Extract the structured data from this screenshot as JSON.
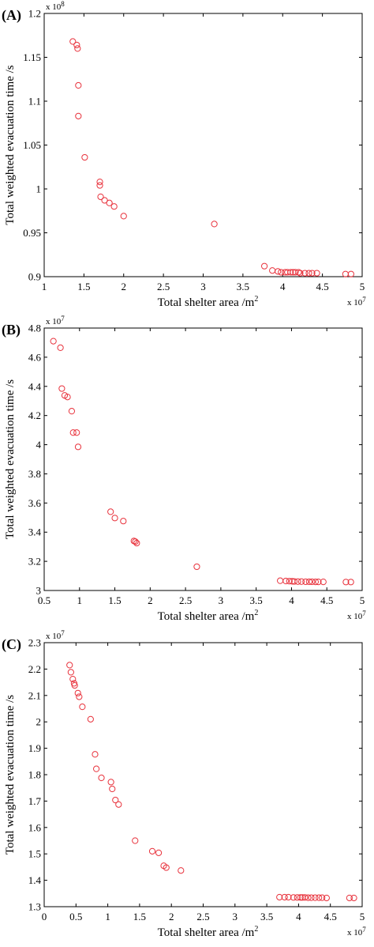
{
  "colors": {
    "marker": "#e8323c",
    "axis": "#000000",
    "background": "#ffffff"
  },
  "chart_data": [
    {
      "panel_label": "(A)",
      "type": "scatter",
      "xlabel": "Total shelter area /m",
      "xlabel_sup": "2",
      "ylabel": "Total weighted evacuation time /s",
      "x_multiplier": "x 10",
      "x_multiplier_exp": "7",
      "y_multiplier": "x 10",
      "y_multiplier_exp": "8",
      "xlim": [
        1,
        5
      ],
      "ylim": [
        0.9,
        1.2
      ],
      "xticks": [
        1,
        1.5,
        2,
        2.5,
        3,
        3.5,
        4,
        4.5,
        5
      ],
      "xtick_labels": [
        "1",
        "1.5",
        "2",
        "2.5",
        "3",
        "3.5",
        "4",
        "4.5",
        "5"
      ],
      "yticks": [
        0.9,
        0.95,
        1,
        1.05,
        1.1,
        1.15,
        1.2
      ],
      "ytick_labels": [
        "0.9",
        "0.95",
        "1",
        "1.05",
        "1.1",
        "1.15",
        "1.2"
      ],
      "x": [
        1.36,
        1.41,
        1.42,
        1.43,
        1.43,
        1.51,
        1.7,
        1.7,
        1.71,
        1.76,
        1.82,
        1.88,
        2.0,
        3.14,
        3.77,
        3.87,
        3.94,
        3.98,
        4.03,
        4.06,
        4.1,
        4.13,
        4.16,
        4.2,
        4.22,
        4.28,
        4.33,
        4.37,
        4.43,
        4.79,
        4.86
      ],
      "y": [
        1.168,
        1.164,
        1.16,
        1.118,
        1.083,
        1.036,
        1.008,
        1.004,
        0.991,
        0.987,
        0.984,
        0.98,
        0.969,
        0.96,
        0.912,
        0.907,
        0.906,
        0.905,
        0.905,
        0.905,
        0.905,
        0.905,
        0.905,
        0.905,
        0.904,
        0.904,
        0.904,
        0.904,
        0.904,
        0.903,
        0.903
      ]
    },
    {
      "panel_label": "(B)",
      "type": "scatter",
      "xlabel": "Total shelter area /m",
      "xlabel_sup": "2",
      "ylabel": "Total weighted evacuation time /s",
      "x_multiplier": "x 10",
      "x_multiplier_exp": "7",
      "y_multiplier": "x 10",
      "y_multiplier_exp": "7",
      "xlim": [
        0.5,
        5
      ],
      "ylim": [
        3.0,
        4.8
      ],
      "xticks": [
        0.5,
        1,
        1.5,
        2,
        2.5,
        3,
        3.5,
        4,
        4.5,
        5
      ],
      "xtick_labels": [
        "0.5",
        "1",
        "1.5",
        "2",
        "2.5",
        "3",
        "3.5",
        "4",
        "4.5",
        "5"
      ],
      "yticks": [
        3.0,
        3.2,
        3.4,
        3.6,
        3.8,
        4.0,
        4.2,
        4.4,
        4.6,
        4.8
      ],
      "ytick_labels": [
        "3",
        "3.2",
        "3.4",
        "3.6",
        "3.8",
        "4",
        "4.2",
        "4.4",
        "4.6",
        "4.8"
      ],
      "x": [
        0.63,
        0.73,
        0.75,
        0.79,
        0.83,
        0.89,
        0.91,
        0.96,
        0.98,
        1.44,
        1.5,
        1.62,
        1.77,
        1.79,
        1.81,
        2.66,
        3.84,
        3.92,
        3.97,
        4.01,
        4.04,
        4.09,
        4.14,
        4.2,
        4.25,
        4.29,
        4.34,
        4.38,
        4.45,
        4.77,
        4.84
      ],
      "y": [
        4.71,
        4.665,
        4.385,
        4.338,
        4.327,
        4.23,
        4.083,
        4.083,
        3.985,
        3.54,
        3.497,
        3.476,
        3.34,
        3.335,
        3.325,
        3.163,
        3.067,
        3.065,
        3.064,
        3.063,
        3.062,
        3.061,
        3.061,
        3.06,
        3.06,
        3.06,
        3.059,
        3.059,
        3.059,
        3.058,
        3.058
      ]
    },
    {
      "panel_label": "(C)",
      "type": "scatter",
      "xlabel": "Total shelter area /m",
      "xlabel_sup": "2",
      "ylabel": "Total weighted evacuation time /s",
      "x_multiplier": "x 10",
      "x_multiplier_exp": "7",
      "y_multiplier": "x 10",
      "y_multiplier_exp": "7",
      "xlim": [
        0,
        5
      ],
      "ylim": [
        1.3,
        2.3
      ],
      "xticks": [
        0,
        0.5,
        1,
        1.5,
        2,
        2.5,
        3,
        3.5,
        4,
        4.5,
        5
      ],
      "xtick_labels": [
        "0",
        "0.5",
        "1",
        "1.5",
        "2",
        "2.5",
        "3",
        "3.5",
        "4",
        "4.5",
        "5"
      ],
      "yticks": [
        1.3,
        1.4,
        1.5,
        1.6,
        1.7,
        1.8,
        1.9,
        2.0,
        2.1,
        2.2,
        2.3
      ],
      "ytick_labels": [
        "1.3",
        "1.4",
        "1.5",
        "1.6",
        "1.7",
        "1.8",
        "1.9",
        "2",
        "2.1",
        "2.2",
        "2.3"
      ],
      "x": [
        0.4,
        0.42,
        0.45,
        0.47,
        0.48,
        0.53,
        0.55,
        0.6,
        0.73,
        0.8,
        0.82,
        0.9,
        1.05,
        1.07,
        1.12,
        1.17,
        1.43,
        1.7,
        1.8,
        1.88,
        1.92,
        2.15,
        3.7,
        3.78,
        3.84,
        3.92,
        3.98,
        4.03,
        4.06,
        4.1,
        4.15,
        4.2,
        4.26,
        4.32,
        4.37,
        4.44,
        4.8,
        4.87
      ],
      "y": [
        2.215,
        2.188,
        2.162,
        2.146,
        2.138,
        2.109,
        2.095,
        2.057,
        2.01,
        1.877,
        1.822,
        1.788,
        1.772,
        1.746,
        1.704,
        1.687,
        1.55,
        1.51,
        1.504,
        1.455,
        1.448,
        1.437,
        1.336,
        1.336,
        1.336,
        1.335,
        1.335,
        1.335,
        1.335,
        1.335,
        1.334,
        1.334,
        1.334,
        1.334,
        1.334,
        1.333,
        1.333,
        1.333
      ]
    }
  ]
}
